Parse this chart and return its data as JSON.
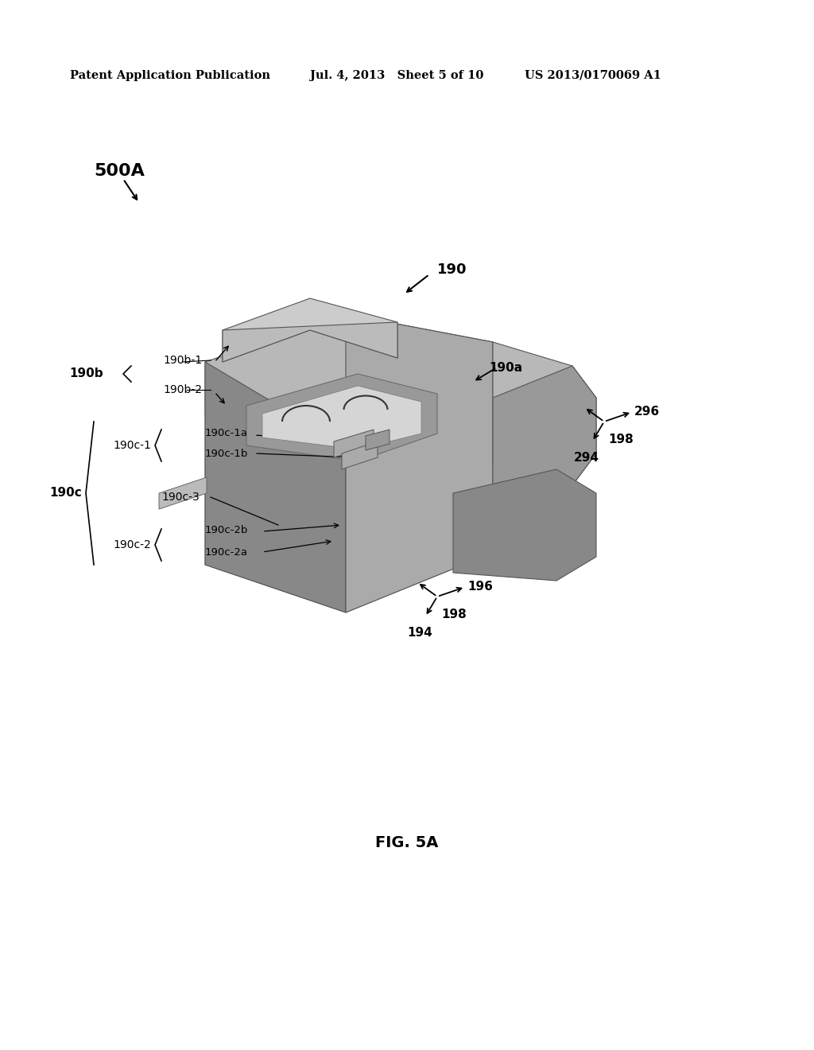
{
  "background_color": "#ffffff",
  "header_left": "Patent Application Publication",
  "header_mid": "Jul. 4, 2013   Sheet 5 of 10",
  "header_right": "US 2013/0170069 A1",
  "figure_label": "FIG. 5A",
  "label_500A": "500A",
  "label_190": "190",
  "label_190a": "190a",
  "label_190b": "190b",
  "label_190b1": "190b-1",
  "label_190b2": "190b-2",
  "label_190c": "190c",
  "label_190c1": "190c-1",
  "label_190c1a": "190c-1a",
  "label_190c1b": "190c-1b",
  "label_190c2": "190c-2",
  "label_190c2a": "190c-2a",
  "label_190c2b": "190c-2b",
  "label_190c3": "190c-3",
  "label_198_top": "198",
  "label_296": "296",
  "label_294": "294",
  "label_198_bot": "198",
  "label_196": "196",
  "label_194": "194"
}
